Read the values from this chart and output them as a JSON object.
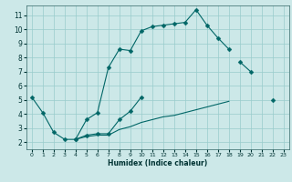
{
  "xlabel": "Humidex (Indice chaleur)",
  "bg_color": "#cce8e8",
  "grid_color": "#99cccc",
  "line_color": "#006666",
  "xlim": [
    -0.5,
    23.5
  ],
  "ylim": [
    1.5,
    11.7
  ],
  "xticks": [
    0,
    1,
    2,
    3,
    4,
    5,
    6,
    7,
    8,
    9,
    10,
    11,
    12,
    13,
    14,
    15,
    16,
    17,
    18,
    19,
    20,
    21,
    22,
    23
  ],
  "yticks": [
    2,
    3,
    4,
    5,
    6,
    7,
    8,
    9,
    10,
    11
  ],
  "series1_x": [
    0,
    1,
    2,
    3,
    4,
    5,
    6,
    7,
    8,
    9,
    10,
    11,
    12,
    13,
    14,
    15,
    16,
    17,
    18
  ],
  "series1_y": [
    5.2,
    4.1,
    2.7,
    2.2,
    2.2,
    3.6,
    4.1,
    7.3,
    8.6,
    8.5,
    9.9,
    10.2,
    10.3,
    10.4,
    10.5,
    11.4,
    10.3,
    9.4,
    8.6
  ],
  "series2_segments": [
    [
      4,
      5,
      6,
      7,
      8,
      9,
      10
    ],
    [
      19,
      20
    ],
    [
      22
    ]
  ],
  "series2_seg_y": [
    [
      2.2,
      2.5,
      2.6,
      2.6,
      3.6,
      4.2,
      5.2
    ],
    [
      7.7,
      7.0
    ],
    [
      5.0
    ]
  ],
  "series3_segments": [
    [
      4,
      5,
      6,
      7,
      8,
      9,
      10,
      11,
      12,
      13,
      14,
      15,
      16,
      17,
      18
    ],
    [
      22
    ]
  ],
  "series3_seg_y": [
    [
      2.2,
      2.4,
      2.5,
      2.5,
      2.9,
      3.1,
      3.4,
      3.6,
      3.8,
      3.9,
      4.1,
      4.3,
      4.5,
      4.7,
      4.9
    ],
    [
      5.0
    ]
  ]
}
